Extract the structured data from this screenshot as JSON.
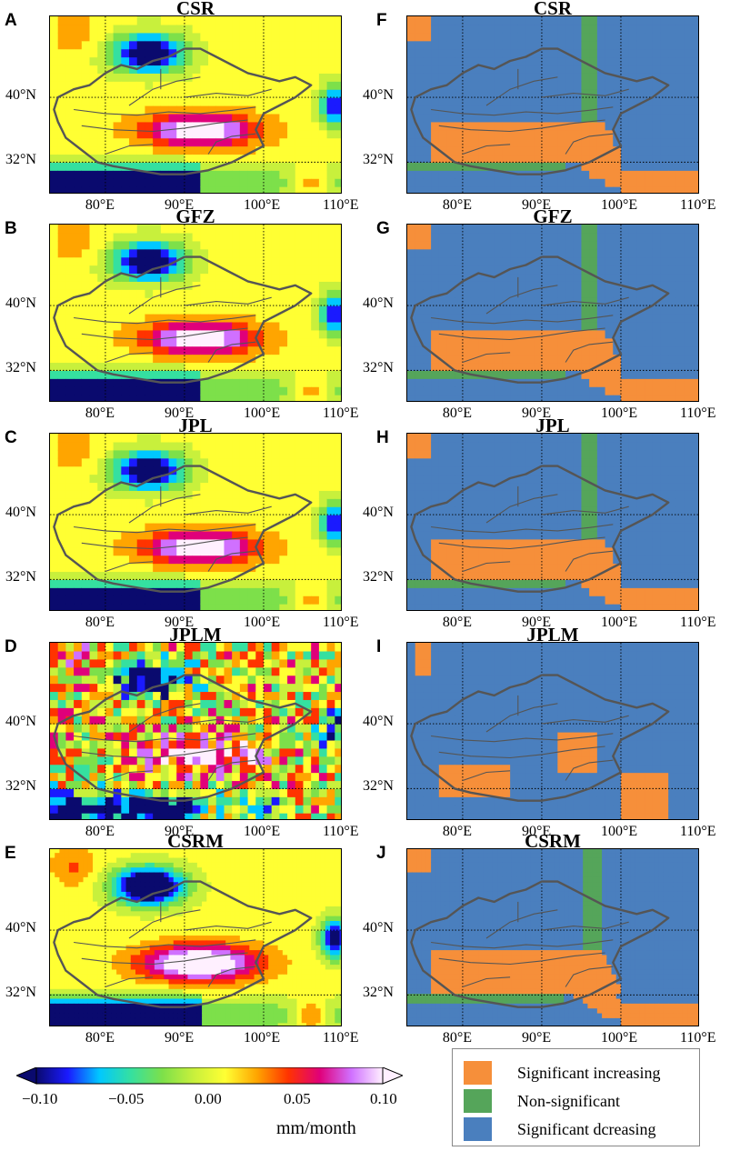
{
  "left_panels": [
    {
      "letter": "A",
      "title": "CSR",
      "variant": "csr"
    },
    {
      "letter": "B",
      "title": "GFZ",
      "variant": "gfz"
    },
    {
      "letter": "C",
      "title": "JPL",
      "variant": "jpl"
    },
    {
      "letter": "D",
      "title": "JPLM",
      "variant": "jplm"
    },
    {
      "letter": "E",
      "title": "CSRM",
      "variant": "csrm"
    }
  ],
  "right_panels": [
    {
      "letter": "F",
      "title": "CSR",
      "variant": "csr"
    },
    {
      "letter": "G",
      "title": "GFZ",
      "variant": "gfz"
    },
    {
      "letter": "H",
      "title": "JPL",
      "variant": "jpl"
    },
    {
      "letter": "I",
      "title": "JPLM",
      "variant": "jplm"
    },
    {
      "letter": "J",
      "title": "CSRM",
      "variant": "csrm"
    }
  ],
  "axes": {
    "lon_ticks": [
      "80°E",
      "90°E",
      "100°E",
      "110°E"
    ],
    "lat_ticks": [
      "40°N",
      "32°N"
    ]
  },
  "colorbar": {
    "tick_labels": [
      "−0.10",
      "−0.05",
      "0.00",
      "0.05",
      "0.10"
    ],
    "unit": "mm/month",
    "range": [
      -0.1,
      0.1
    ],
    "colors": [
      "#0a0a6e",
      "#1a1aff",
      "#00c8ff",
      "#35e0a0",
      "#7de04a",
      "#c8f03c",
      "#ffff33",
      "#ffa500",
      "#ff3300",
      "#e0007a",
      "#d070ff",
      "#fff0ff"
    ]
  },
  "legend": {
    "items": [
      {
        "label": "Significant increasing",
        "color": "#f68f3a"
      },
      {
        "label": "Non-significant",
        "color": "#55a55a"
      },
      {
        "label": "Significant dcreasing",
        "color": "#4a7fbe"
      }
    ]
  }
}
